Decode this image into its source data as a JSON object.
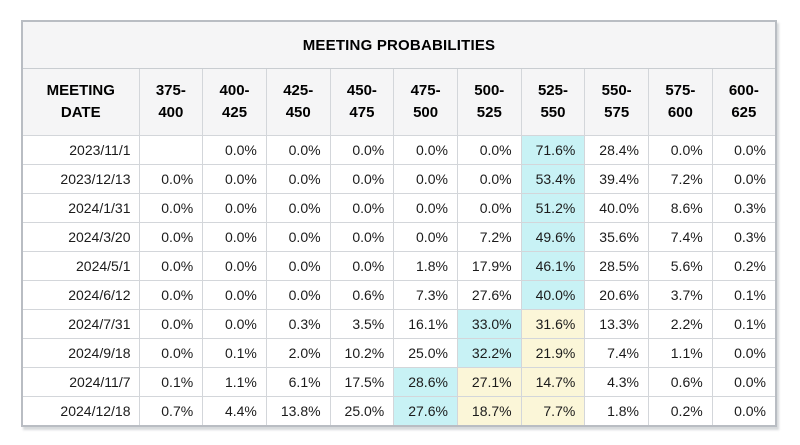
{
  "chart_data": {
    "type": "table",
    "title": "MEETING PROBABILITIES",
    "date_column_header": "MEETING\nDATE",
    "rate_range_headers": [
      "375-\n400",
      "400-\n425",
      "425-\n450",
      "450-\n475",
      "475-\n500",
      "500-\n525",
      "525-\n550",
      "550-\n575",
      "575-\n600",
      "600-\n625"
    ],
    "rows": [
      {
        "date": "2023/11/1",
        "values": [
          "",
          "0.0%",
          "0.0%",
          "0.0%",
          "0.0%",
          "0.0%",
          "71.6%",
          "28.4%",
          "0.0%",
          "0.0%"
        ],
        "highlights": [
          "",
          "",
          "",
          "",
          "",
          "",
          "max",
          "",
          "",
          ""
        ]
      },
      {
        "date": "2023/12/13",
        "values": [
          "0.0%",
          "0.0%",
          "0.0%",
          "0.0%",
          "0.0%",
          "0.0%",
          "53.4%",
          "39.4%",
          "7.2%",
          "0.0%"
        ],
        "highlights": [
          "",
          "",
          "",
          "",
          "",
          "",
          "max",
          "",
          "",
          ""
        ]
      },
      {
        "date": "2024/1/31",
        "values": [
          "0.0%",
          "0.0%",
          "0.0%",
          "0.0%",
          "0.0%",
          "0.0%",
          "51.2%",
          "40.0%",
          "8.6%",
          "0.3%"
        ],
        "highlights": [
          "",
          "",
          "",
          "",
          "",
          "",
          "max",
          "",
          "",
          ""
        ]
      },
      {
        "date": "2024/3/20",
        "values": [
          "0.0%",
          "0.0%",
          "0.0%",
          "0.0%",
          "0.0%",
          "7.2%",
          "49.6%",
          "35.6%",
          "7.4%",
          "0.3%"
        ],
        "highlights": [
          "",
          "",
          "",
          "",
          "",
          "",
          "max",
          "",
          "",
          ""
        ]
      },
      {
        "date": "2024/5/1",
        "values": [
          "0.0%",
          "0.0%",
          "0.0%",
          "0.0%",
          "1.8%",
          "17.9%",
          "46.1%",
          "28.5%",
          "5.6%",
          "0.2%"
        ],
        "highlights": [
          "",
          "",
          "",
          "",
          "",
          "",
          "max",
          "",
          "",
          ""
        ]
      },
      {
        "date": "2024/6/12",
        "values": [
          "0.0%",
          "0.0%",
          "0.0%",
          "0.6%",
          "7.3%",
          "27.6%",
          "40.0%",
          "20.6%",
          "3.7%",
          "0.1%"
        ],
        "highlights": [
          "",
          "",
          "",
          "",
          "",
          "",
          "max",
          "",
          "",
          ""
        ]
      },
      {
        "date": "2024/7/31",
        "values": [
          "0.0%",
          "0.0%",
          "0.3%",
          "3.5%",
          "16.1%",
          "33.0%",
          "31.6%",
          "13.3%",
          "2.2%",
          "0.1%"
        ],
        "highlights": [
          "",
          "",
          "",
          "",
          "",
          "max",
          "cur",
          "",
          "",
          ""
        ]
      },
      {
        "date": "2024/9/18",
        "values": [
          "0.0%",
          "0.1%",
          "2.0%",
          "10.2%",
          "25.0%",
          "32.2%",
          "21.9%",
          "7.4%",
          "1.1%",
          "0.0%"
        ],
        "highlights": [
          "",
          "",
          "",
          "",
          "",
          "max",
          "cur",
          "",
          "",
          ""
        ]
      },
      {
        "date": "2024/11/7",
        "values": [
          "0.1%",
          "1.1%",
          "6.1%",
          "17.5%",
          "28.6%",
          "27.1%",
          "14.7%",
          "4.3%",
          "0.6%",
          "0.0%"
        ],
        "highlights": [
          "",
          "",
          "",
          "",
          "max",
          "cur",
          "cur",
          "",
          "",
          ""
        ]
      },
      {
        "date": "2024/12/18",
        "values": [
          "0.7%",
          "4.4%",
          "13.8%",
          "25.0%",
          "27.6%",
          "18.7%",
          "7.7%",
          "1.8%",
          "0.2%",
          "0.0%"
        ],
        "highlights": [
          "",
          "",
          "",
          "",
          "max",
          "cur",
          "cur",
          "",
          "",
          ""
        ]
      }
    ]
  },
  "colors": {
    "max_highlight": "#c8f2f5",
    "current_highlight": "#fbf6d8",
    "header_bg": "#f5f5f6",
    "cell_border": "#d3d6da",
    "outer_border": "#b9bdc3"
  }
}
